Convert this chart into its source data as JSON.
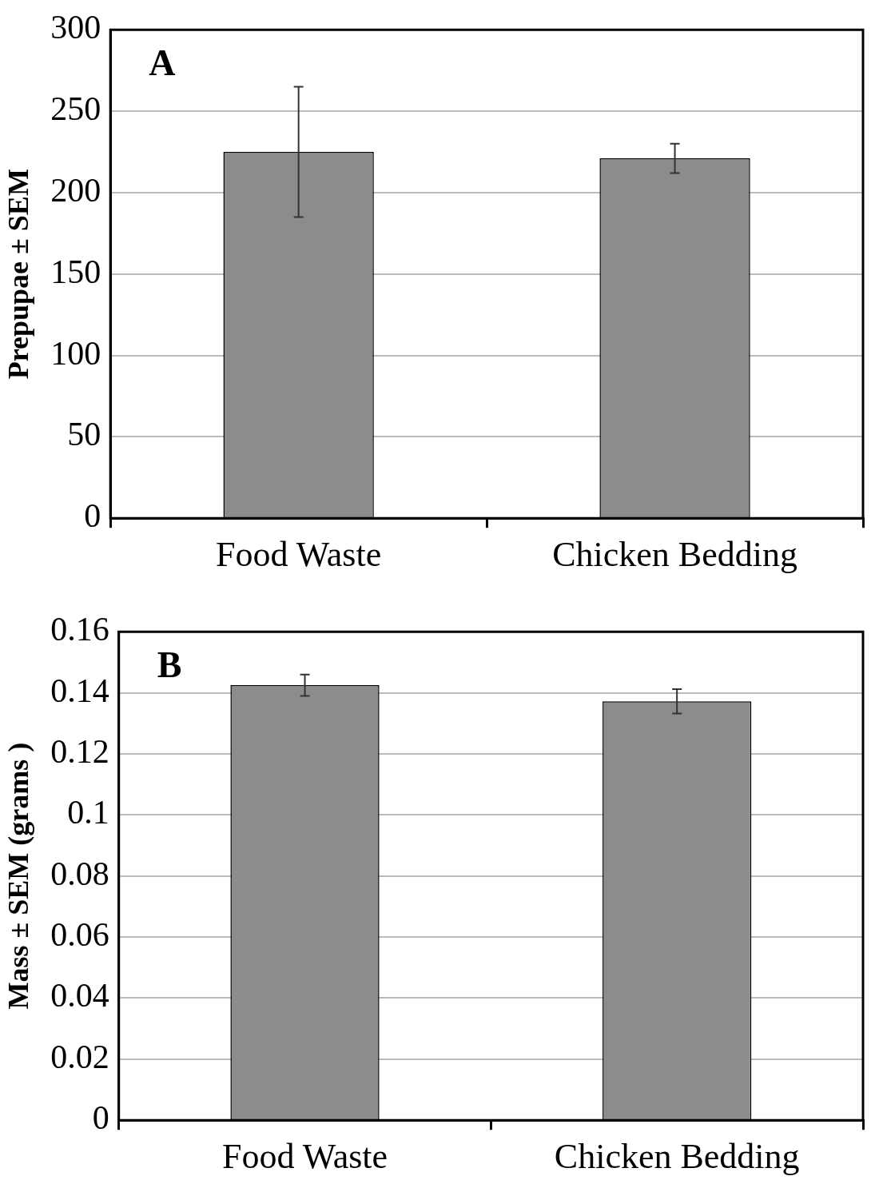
{
  "chart_data": [
    {
      "type": "bar",
      "ylabel": "Prepupae ± SEM",
      "categories": [
        "Food Waste",
        "Chicken Bedding"
      ],
      "values": [
        225,
        221
      ],
      "errors": [
        40,
        9
      ],
      "color": "#8c8c8c",
      "ylim": [
        0,
        300
      ],
      "yticks": [
        0,
        50,
        100,
        150,
        200,
        250,
        300
      ],
      "grid": "y",
      "legend": false,
      "annotations": [
        "A"
      ]
    },
    {
      "type": "bar",
      "ylabel": "Mass ± SEM (grams )",
      "categories": [
        "Food Waste",
        "Chicken Bedding"
      ],
      "values": [
        0.1425,
        0.1372
      ],
      "errors": [
        0.0035,
        0.004
      ],
      "color": "#8c8c8c",
      "ylim": [
        0,
        0.16
      ],
      "yticks": [
        0,
        0.02,
        0.04,
        0.06,
        0.08,
        0.1,
        0.12,
        0.14,
        0.16
      ],
      "grid": "y",
      "legend": false,
      "annotations": [
        "B"
      ]
    }
  ]
}
